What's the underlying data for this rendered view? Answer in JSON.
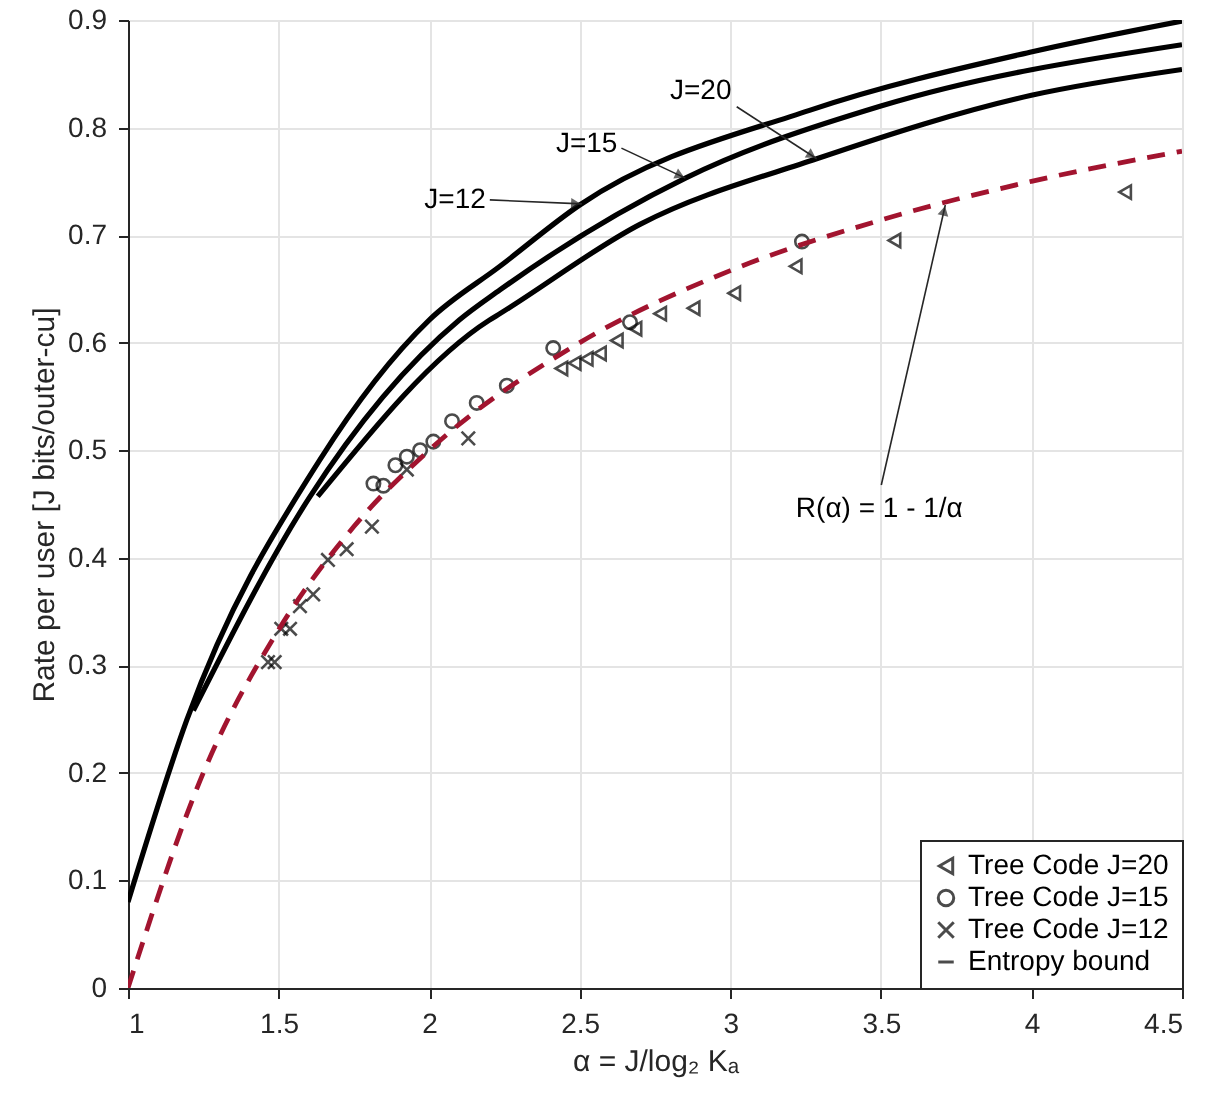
{
  "chart_data": {
    "type": "line",
    "xlabel": "α = J/log₂ Kₐ",
    "ylabel": "Rate per user [J bits/outer-cu]",
    "xlim": [
      1,
      4.5
    ],
    "xticks": [
      {
        "value": 1,
        "label": "1"
      },
      1.5,
      {
        "value": 2,
        "label": "2"
      },
      2.5,
      {
        "value": 3,
        "label": "3"
      },
      3.5,
      {
        "value": 4,
        "label": "4"
      },
      4.5
    ],
    "ylim": [
      0,
      0.9
    ],
    "yticks": [
      {
        "value": 0,
        "label": "0"
      },
      0.1,
      0.2,
      0.3,
      0.4,
      0.5,
      0.6,
      0.7,
      0.8,
      0.9
    ],
    "grid": true,
    "legend": "bottom right",
    "series": [
      {
        "name": "Tree Code J=20",
        "type": "scatter",
        "marker": "triangle",
        "color": "#000000",
        "x": [
          2.439,
          2.483,
          2.523,
          2.567,
          2.623,
          2.685,
          2.767,
          2.878,
          3.013,
          3.217,
          3.545,
          4.311
        ],
        "values": [
          0.576,
          0.581,
          0.585,
          0.59,
          0.602,
          0.613,
          0.627,
          0.632,
          0.646,
          0.671,
          0.695,
          0.74
        ]
      },
      {
        "name": "Tree Code J=15",
        "type": "scatter",
        "marker": "circle",
        "color": "#000000",
        "x": [
          1.815,
          1.848,
          1.888,
          1.926,
          1.97,
          2.014,
          2.076,
          2.158,
          2.258,
          2.412,
          2.667,
          3.238
        ],
        "values": [
          0.469,
          0.467,
          0.486,
          0.494,
          0.5,
          0.508,
          0.527,
          0.544,
          0.56,
          0.595,
          0.619,
          0.694
        ]
      },
      {
        "name": "Tree Code J=12",
        "type": "scatter",
        "marker": "cross",
        "color": "#000000",
        "x": [
          1.465,
          1.487,
          1.509,
          1.538,
          1.571,
          1.615,
          1.664,
          1.726,
          1.81,
          1.926,
          2.13
        ],
        "values": [
          0.303,
          0.303,
          0.334,
          0.334,
          0.355,
          0.366,
          0.398,
          0.408,
          0.429,
          0.482,
          0.511
        ]
      },
      {
        "name": "Entropy bound",
        "line_style": "solid",
        "color": "#000000",
        "x": [
          1,
          1.195,
          1.637,
          2.0,
          2.235,
          2.5,
          3.263,
          3.995,
          4.5
        ],
        "values": [
          0.08,
          0.249,
          0.491,
          0.621,
          0.671,
          0.728,
          0.816,
          0.87,
          0.899
        ]
      },
      {
        "line_style": "solid",
        "color": "#000000",
        "x": [
          1.217,
          1.6,
          2.1,
          2.235,
          2.851,
          3.5,
          4.5
        ],
        "values": [
          0.258,
          0.455,
          0.621,
          0.649,
          0.753,
          0.82,
          0.877
        ]
      },
      {
        "line_style": "solid",
        "color": "#000000",
        "x": [
          1.63,
          2.2,
          2.235,
          2.7,
          3.287,
          4.0,
          4.5
        ],
        "values": [
          0.457,
          0.621,
          0.627,
          0.71,
          0.771,
          0.83,
          0.854
        ]
      },
      {
        "line_style": "dashed",
        "color": "#a2142f",
        "x": [
          1,
          1.25,
          1.5,
          1.75,
          2,
          2.5,
          3,
          3.5,
          4,
          4.5
        ],
        "values": [
          0,
          0.2,
          0.333,
          0.429,
          0.5,
          0.6,
          0.667,
          0.714,
          0.75,
          0.778
        ]
      }
    ],
    "annotations": [
      {
        "text": "J=12",
        "x": 2.507,
        "y": 0.729
      },
      {
        "text": "J=15",
        "x": 2.851,
        "y": 0.753
      },
      {
        "text": "J=20",
        "x": 3.287,
        "y": 0.771
      },
      {
        "text": "R(α) = 1 - 1/α",
        "x": 3.714,
        "y": 0.728
      }
    ]
  }
}
